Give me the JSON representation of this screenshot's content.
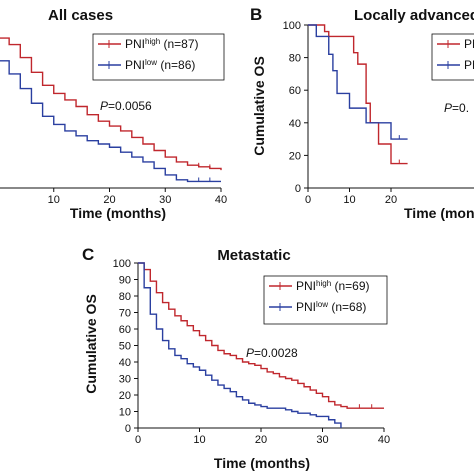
{
  "colors": {
    "high": "#c0272d",
    "low": "#2a3fa0",
    "axis": "#111111"
  },
  "chart_data": [
    {
      "type": "line",
      "panel": "",
      "title": "All cases",
      "xlabel": "Time (months)",
      "ylabel": "",
      "xlim": [
        0,
        40
      ],
      "ylim": [
        0,
        100
      ],
      "xticks": [
        "10",
        "20",
        "30",
        "40"
      ],
      "yticks": [],
      "pvalue": "0.0056",
      "series": [
        {
          "name": "PNI",
          "sup": "high",
          "n": "(n=87)",
          "color": "#c0272d",
          "x": [
            0,
            2,
            4,
            6,
            8,
            10,
            12,
            14,
            16,
            18,
            20,
            22,
            24,
            26,
            28,
            30,
            32,
            34,
            36,
            38,
            40
          ],
          "y": [
            92,
            88,
            80,
            71,
            63,
            58,
            54,
            50,
            45,
            41,
            38,
            35,
            31,
            27,
            23,
            19,
            16,
            14,
            13,
            12,
            11
          ]
        },
        {
          "name": "PNI",
          "sup": "low",
          "n": "(n=86)",
          "color": "#2a3fa0",
          "x": [
            0,
            2,
            4,
            6,
            8,
            10,
            12,
            14,
            16,
            18,
            20,
            22,
            24,
            26,
            28,
            30,
            32,
            34,
            36,
            38,
            40
          ],
          "y": [
            78,
            70,
            61,
            52,
            44,
            39,
            35,
            32,
            29,
            27,
            25,
            22,
            19,
            16,
            12,
            8,
            5,
            4,
            4,
            4,
            4
          ]
        }
      ]
    },
    {
      "type": "line",
      "panel": "B",
      "title": "Locally advanced",
      "xlabel": "Time (months)",
      "ylabel": "Cumulative OS",
      "xlim": [
        0,
        40
      ],
      "ylim": [
        0,
        100
      ],
      "xticks": [
        "0",
        "10",
        "20"
      ],
      "yticks": [
        "0",
        "20",
        "40",
        "60",
        "80",
        "100"
      ],
      "pvalue": "0.",
      "series": [
        {
          "name": "PNI",
          "sup": "high",
          "n": "",
          "color": "#c0272d",
          "x": [
            0,
            2,
            4,
            5,
            6,
            7,
            8,
            9,
            10,
            11,
            12,
            13,
            14,
            15,
            16,
            17,
            18,
            19,
            20,
            22,
            24
          ],
          "y": [
            100,
            100,
            96,
            93,
            93,
            93,
            93,
            93,
            93,
            83,
            76,
            76,
            52,
            40,
            40,
            27,
            27,
            27,
            15,
            15,
            15
          ]
        },
        {
          "name": "PNI",
          "sup": "low",
          "n": "",
          "color": "#2a3fa0",
          "x": [
            0,
            2,
            4,
            5,
            6,
            7,
            8,
            9,
            10,
            11,
            12,
            13,
            14,
            15,
            16,
            17,
            18,
            19,
            20,
            22,
            24
          ],
          "y": [
            100,
            93,
            93,
            82,
            72,
            58,
            58,
            58,
            49,
            49,
            49,
            49,
            40,
            40,
            40,
            40,
            40,
            40,
            30,
            30,
            30
          ]
        }
      ]
    },
    {
      "type": "line",
      "panel": "C",
      "title": "Metastatic",
      "xlabel": "Time (months)",
      "ylabel": "Cumulative OS",
      "xlim": [
        0,
        40
      ],
      "ylim": [
        0,
        100
      ],
      "xticks": [
        "0",
        "10",
        "20",
        "30",
        "40"
      ],
      "yticks": [
        "0",
        "10",
        "20",
        "30",
        "40",
        "50",
        "60",
        "70",
        "80",
        "90",
        "100"
      ],
      "pvalue": "0.0028",
      "series": [
        {
          "name": "PNI",
          "sup": "high",
          "n": "(n=69)",
          "color": "#c0272d",
          "x": [
            0,
            1,
            2,
            3,
            4,
            5,
            6,
            7,
            8,
            9,
            10,
            11,
            12,
            13,
            14,
            15,
            16,
            17,
            18,
            19,
            20,
            21,
            22,
            23,
            24,
            25,
            26,
            27,
            28,
            29,
            30,
            31,
            32,
            33,
            34,
            35,
            36,
            37,
            38,
            39,
            40
          ],
          "y": [
            100,
            96,
            89,
            82,
            76,
            72,
            68,
            65,
            62,
            59,
            56,
            53,
            50,
            47,
            45,
            44,
            42,
            40,
            39,
            38,
            36,
            34,
            33,
            31,
            30,
            29,
            27,
            25,
            23,
            21,
            19,
            16,
            14,
            13,
            12,
            12,
            12,
            12,
            12,
            12,
            12
          ]
        },
        {
          "name": "PNI",
          "sup": "low",
          "n": "(n=68)",
          "color": "#2a3fa0",
          "x": [
            0,
            1,
            2,
            3,
            4,
            5,
            6,
            7,
            8,
            9,
            10,
            11,
            12,
            13,
            14,
            15,
            16,
            17,
            18,
            19,
            20,
            21,
            22,
            23,
            24,
            25,
            26,
            27,
            28,
            29,
            30,
            31,
            32,
            33
          ],
          "y": [
            100,
            85,
            69,
            60,
            53,
            48,
            44,
            42,
            39,
            37,
            35,
            32,
            29,
            26,
            24,
            22,
            19,
            17,
            15,
            14,
            13,
            12,
            12,
            12,
            11,
            10,
            9,
            9,
            8,
            7,
            7,
            5,
            3,
            0
          ]
        }
      ]
    }
  ]
}
